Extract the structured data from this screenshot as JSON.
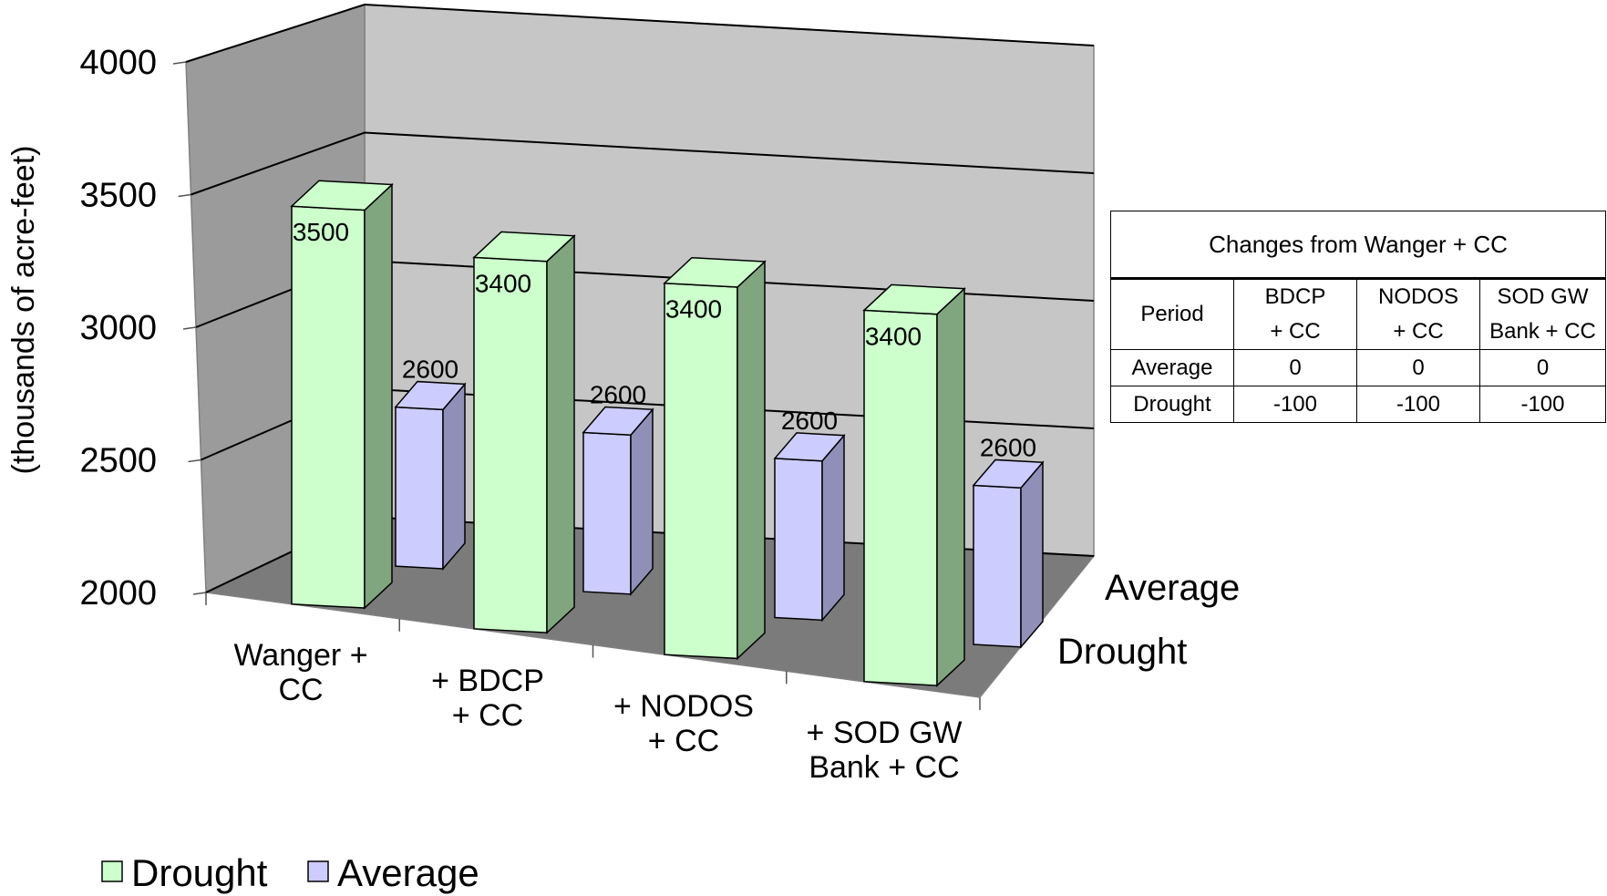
{
  "chart_data": {
    "type": "bar",
    "ylabel": "(thousands of acre-feet)",
    "ylim": [
      2000,
      4000
    ],
    "yticks": [
      "4000",
      "3500",
      "3000",
      "2500",
      "2000"
    ],
    "categories": [
      [
        "Wanger +",
        "CC"
      ],
      [
        "+  BDCP",
        "+ CC"
      ],
      [
        "+  NODOS",
        "+ CC"
      ],
      [
        "+  SOD GW",
        "Bank + CC"
      ]
    ],
    "series": [
      {
        "name": "Drought",
        "values": [
          3500,
          3400,
          3400,
          3400
        ],
        "color": "#ccffcc",
        "label_text": [
          "3500",
          "3400",
          "3400",
          "3400"
        ]
      },
      {
        "name": "Average",
        "values": [
          2600,
          2600,
          2600,
          2600
        ],
        "color": "#ccccff",
        "label_text": [
          "2600",
          "2600",
          "2600",
          "2600"
        ]
      }
    ],
    "depth_axis": [
      "Average",
      "Drought"
    ],
    "grid": true,
    "legend_position": "bottom-left",
    "style": "3d-column"
  },
  "table": {
    "title": "Changes from Wanger + CC",
    "header": [
      "Period",
      "BDCP + CC",
      "NODOS + CC",
      "SOD GW Bank + CC"
    ],
    "header_lines": [
      [
        "Period"
      ],
      [
        "BDCP",
        "+ CC"
      ],
      [
        "NODOS",
        "+ CC"
      ],
      [
        "SOD GW",
        "Bank + CC"
      ]
    ],
    "rows": [
      [
        "Average",
        "0",
        "0",
        "0"
      ],
      [
        "Drought",
        "-100",
        "-100",
        "-100"
      ]
    ]
  }
}
